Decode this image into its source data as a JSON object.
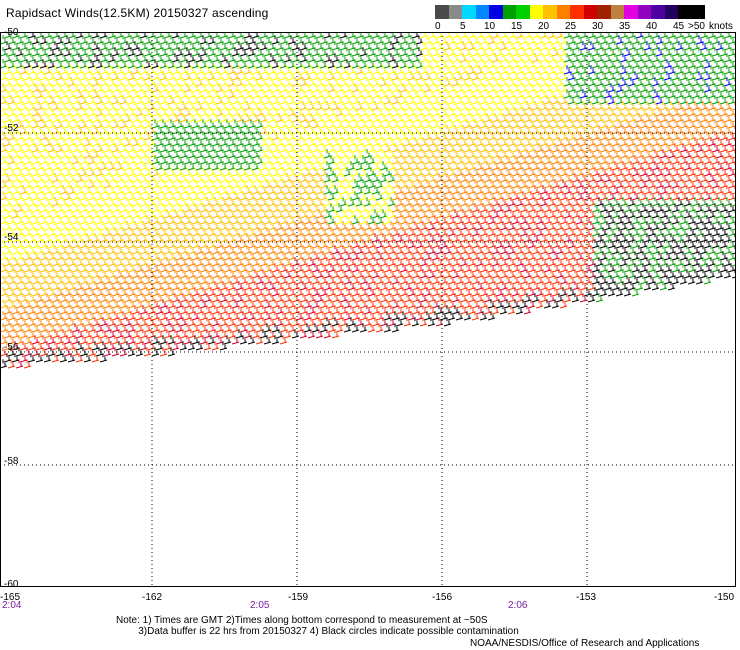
{
  "title": "Rapidsact Winds(12.5KM) 20150327 ascending",
  "legend": {
    "ticks": [
      "0",
      "5",
      "10",
      "15",
      "20",
      "25",
      "30",
      "35",
      "40",
      "45",
      ">50",
      "knots"
    ],
    "colors": [
      "#4a4a4a",
      "#8a8a8a",
      "#00d8ff",
      "#0088ff",
      "#0000e0",
      "#00a000",
      "#00d000",
      "#ffff00",
      "#ffc000",
      "#ff8000",
      "#ff3000",
      "#d00000",
      "#a02000",
      "#c08040",
      "#e000e0",
      "#9000c0",
      "#5000a0",
      "#200060",
      "#000000",
      "#000000"
    ]
  },
  "map": {
    "lat_labels": [
      "-50",
      "-52",
      "-54",
      "-56",
      "-58",
      "-60"
    ],
    "lon_labels": [
      "-165",
      "-162",
      "-159",
      "-156",
      "-153",
      "-150"
    ],
    "time_labels": [
      "2:04",
      "2:05",
      "2:06"
    ]
  },
  "notes": {
    "line1": "Note: 1) Times are GMT 2)Times along bottom correspond to measurement at ~50S",
    "line2": "        3)Data buffer is 22 hrs from 20150327 4) Black circles indicate possible contamination"
  },
  "credit": "NOAA/NESDIS/Office of Research and Applications",
  "wind_colors": {
    "calm": "#000000",
    "green": "#00a000",
    "yellow": "#ffff00",
    "gold": "#ffc000",
    "orange": "#ff8000",
    "red": "#ff3000",
    "crimson": "#d0002a",
    "blue": "#0000e0",
    "purple": "#8000c0"
  }
}
